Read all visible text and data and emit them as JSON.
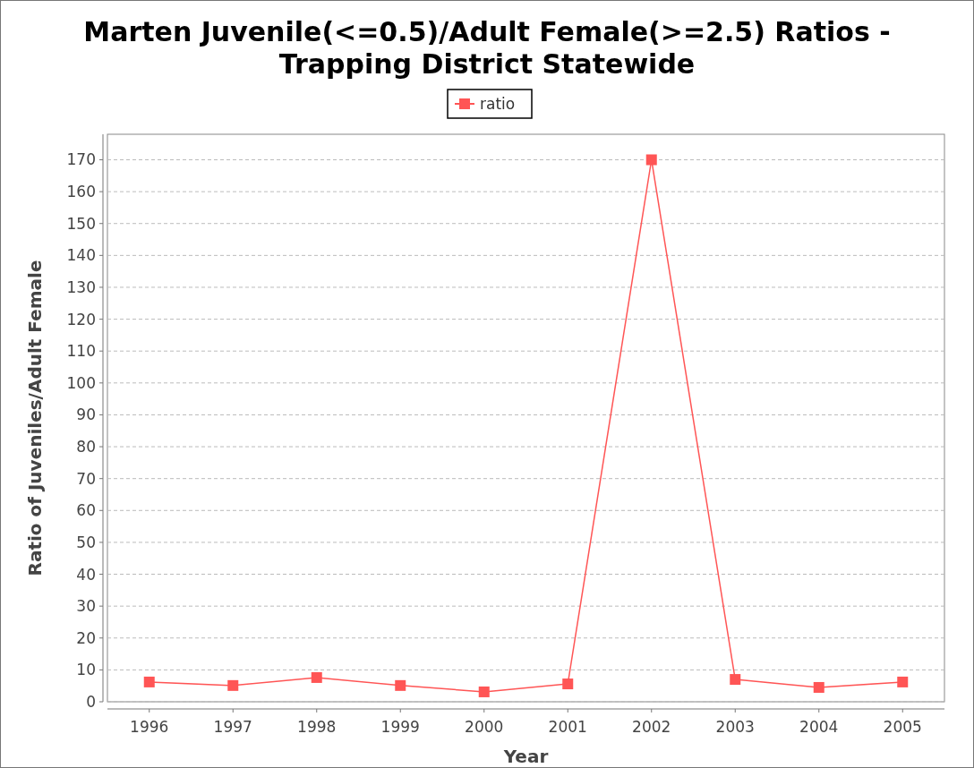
{
  "chart_data": {
    "type": "line",
    "title": "Marten Juvenile(<=0.5)/Adult Female(>=2.5) Ratios - Trapping District Statewide",
    "xlabel": "Year",
    "ylabel": "Ratio of Juveniles/Adult Female",
    "categories": [
      "1996",
      "1997",
      "1998",
      "1999",
      "2000",
      "2001",
      "2002",
      "2003",
      "2004",
      "2005"
    ],
    "series": [
      {
        "name": "ratio",
        "color": "#ff5555",
        "values": [
          6.2,
          5.1,
          7.6,
          5.1,
          3.1,
          5.6,
          170,
          7.0,
          4.5,
          6.2
        ]
      }
    ],
    "ylim": [
      0,
      178
    ],
    "yticks": [
      0,
      10,
      20,
      30,
      40,
      50,
      60,
      70,
      80,
      90,
      100,
      110,
      120,
      130,
      140,
      150,
      160,
      170
    ],
    "grid": "y",
    "legend": "top",
    "marker": "square",
    "line_style": "solid"
  }
}
